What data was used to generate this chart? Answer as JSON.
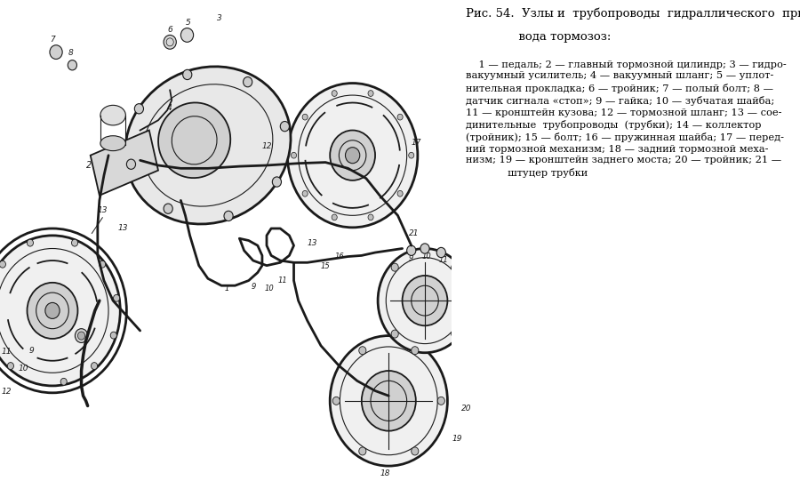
{
  "bg_color": "#ffffff",
  "text_color": "#000000",
  "figure_width": 9.0,
  "figure_height": 5.41,
  "title_line1": "Рис. 54.  Узлы и  трубопроводы  гидраллического  при-",
  "title_line2": "              вода тормозоз:",
  "desc_text": "    1 — педаль; 2 — главный тормозной цилиндр; 3 — гидро-\nвакуумный усилитель; 4 — вакуумный шланг; 5 — уплот-\nнительная прокладка; 6 — тройник; 7 — полый болт; 8 —\nдатчик сигнала «стоп»; 9 — гайка; 10 — зубчатая шайба;\n11 — кронштейн кузова; 12 — тормозной шланг; 13 — сое-\nдинительные  трубопроводы  (трубки); 14 — коллектор\n(тройник); 15 — болт; 16 — пружинная шайба; 17 — перед-\nний тормозной механизм; 18 — задний тормозной меха-\nнизм; 19 — кронштейн заднего моста; 20 — тройник; 21 —\n             штуцер трубки"
}
